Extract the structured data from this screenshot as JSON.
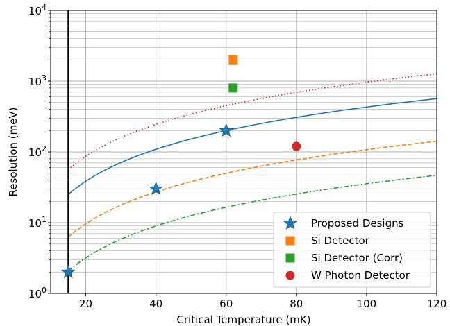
{
  "chart_data": {
    "type": "scatter",
    "xlabel": "Critical Temperature (mK)",
    "ylabel": "Resolution (meV)",
    "xlim": [
      10,
      120
    ],
    "ylim": [
      1,
      10000
    ],
    "y_scale": "log",
    "grid": true,
    "legend_position": "lower-right",
    "x_ticks": [
      "20",
      "40",
      "60",
      "80",
      "100",
      "120"
    ],
    "y_ticks": [
      {
        "base": "10",
        "exp": "0",
        "value": 1
      },
      {
        "base": "10",
        "exp": "1",
        "value": 10
      },
      {
        "base": "10",
        "exp": "2",
        "value": 100
      },
      {
        "base": "10",
        "exp": "3",
        "value": 1000
      },
      {
        "base": "10",
        "exp": "4",
        "value": 10000
      }
    ],
    "vertical_line": {
      "x": 15,
      "color": "#000000"
    },
    "curves": [
      {
        "style": "solid",
        "color": "#1f77b4",
        "x_min": 15,
        "x_max": 120,
        "y_at_60": 200,
        "exponent": 1.5
      },
      {
        "style": "dotted",
        "color": "#d62728",
        "x_min": 15,
        "x_max": 120,
        "y_at_60": 450,
        "exponent": 1.5
      },
      {
        "style": "dashed",
        "color": "#ff7f0e",
        "x_min": 15,
        "x_max": 120,
        "y_at_60": 50,
        "exponent": 1.5
      },
      {
        "style": "dashdot",
        "color": "#2ca02c",
        "x_min": 15,
        "x_max": 120,
        "y_at_60": 16.5,
        "exponent": 1.5
      }
    ],
    "series": [
      {
        "name": "Proposed Designs",
        "marker": "star",
        "color": "#1f77b4",
        "x": [
          15,
          40,
          60
        ],
        "y": [
          2,
          30,
          200
        ]
      },
      {
        "name": "Si Detector",
        "marker": "square",
        "color": "#ff7f0e",
        "x": [
          62
        ],
        "y": [
          2000
        ]
      },
      {
        "name": "Si Detector (Corr)",
        "marker": "square",
        "color": "#2ca02c",
        "x": [
          62
        ],
        "y": [
          800
        ]
      },
      {
        "name": "W Photon Detector",
        "marker": "circle",
        "color": "#d62728",
        "x": [
          80
        ],
        "y": [
          120
        ]
      }
    ]
  }
}
